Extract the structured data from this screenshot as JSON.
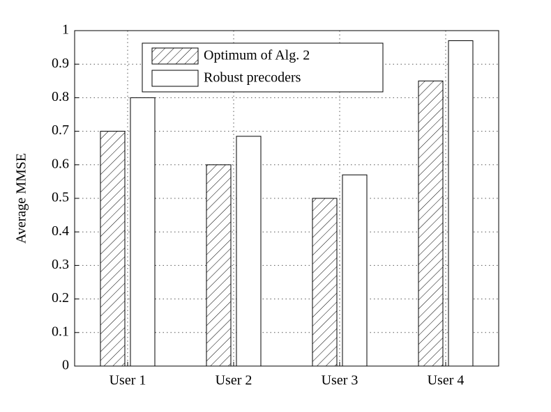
{
  "chart_data": {
    "type": "bar",
    "y_label": "Average MMSE",
    "categories": [
      "User 1",
      "User 2",
      "User 3",
      "User 4"
    ],
    "series": [
      {
        "name": "Optimum of Alg. 2",
        "color": "#ffffff",
        "hatch": true,
        "values": [
          0.7,
          0.6,
          0.5,
          0.85
        ]
      },
      {
        "name": "Robust precoders",
        "color": "#ffffff",
        "hatch": false,
        "values": [
          0.8,
          0.685,
          0.57,
          0.97
        ]
      }
    ],
    "ylim": [
      0,
      1
    ],
    "yticks": [
      0,
      0.1,
      0.2,
      0.3,
      0.4,
      0.5,
      0.6,
      0.7,
      0.8,
      0.9,
      1
    ],
    "grid": true,
    "legend": "top"
  }
}
